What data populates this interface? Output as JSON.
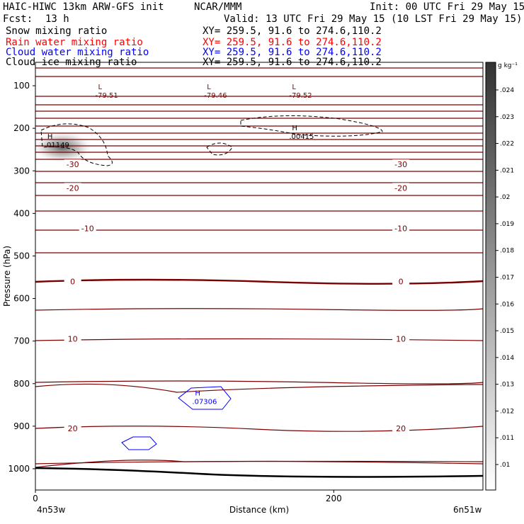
{
  "header": {
    "title_left": "HAIC-HIWC 13km ARW-GFS init",
    "title_mid": "NCAR/MMM",
    "init": "Init: 00 UTC Fri 29 May 15",
    "fcst_label": "Fcst:",
    "fcst_value": "13 h",
    "valid": "Valid: 13 UTC Fri 29 May 15 (10 LST Fri 29 May 15)",
    "fields": [
      {
        "name": "Snow mixing ratio",
        "xy": "XY= 259.5, 91.6 to 274.6,110.2",
        "color": "#000000"
      },
      {
        "name": "Rain water mixing ratio",
        "xy": "XY= 259.5, 91.6 to 274.6,110.2",
        "color": "#ff0000"
      },
      {
        "name": "Cloud water mixing ratio",
        "xy": "XY= 259.5, 91.6 to 274.6,110.2",
        "color": "#0000ff"
      },
      {
        "name": "Cloud ice mixing ratio",
        "xy": "XY= 259.5, 91.6 to 274.6,110.2",
        "color": "#000000"
      }
    ]
  },
  "chart_data": {
    "type": "contour",
    "ylabel": "Pressure (hPa)",
    "xlabel": "Distance (km)",
    "x_start_label": "4n53w",
    "x_end_label": "6n51w",
    "x_ticks": [
      0,
      200
    ],
    "xlim": [
      0,
      300
    ],
    "y_ticks": [
      100,
      200,
      300,
      400,
      500,
      600,
      700,
      800,
      900,
      1000
    ],
    "ylim": [
      45,
      1050
    ],
    "colorbar": {
      "unit": "g kg⁻¹",
      "ticks": [
        ".01",
        ".011",
        ".012",
        ".013",
        ".014",
        ".015",
        ".016",
        ".017",
        ".018",
        ".019",
        ".02",
        ".021",
        ".022",
        ".023",
        ".024"
      ]
    },
    "temperature_labels": [
      {
        "text": "-30",
        "x": 25,
        "p": 285
      },
      {
        "text": "-30",
        "x": 245,
        "p": 285
      },
      {
        "text": "-20",
        "x": 25,
        "p": 340
      },
      {
        "text": "-20",
        "x": 245,
        "p": 340
      },
      {
        "text": "-10",
        "x": 35,
        "p": 435
      },
      {
        "text": "-10",
        "x": 245,
        "p": 435
      },
      {
        "text": "0",
        "x": 25,
        "p": 560
      },
      {
        "text": "0",
        "x": 245,
        "p": 560
      },
      {
        "text": "10",
        "x": 25,
        "p": 695
      },
      {
        "text": "10",
        "x": 245,
        "p": 695
      },
      {
        "text": "20",
        "x": 25,
        "p": 905
      },
      {
        "text": "20",
        "x": 245,
        "p": 905
      }
    ],
    "extrema_labels": [
      {
        "kind": "L",
        "value": "-79.51",
        "x": 42,
        "p": 108,
        "color": "#8b0000"
      },
      {
        "kind": "L",
        "value": "-79.46",
        "x": 115,
        "p": 108,
        "color": "#8b0000"
      },
      {
        "kind": "L",
        "value": "-79.52",
        "x": 172,
        "p": 108,
        "color": "#8b0000"
      },
      {
        "kind": "H",
        "value": ".01149",
        "x": 8,
        "p": 225,
        "color": "#000000"
      },
      {
        "kind": "H",
        "value": ".00415",
        "x": 172,
        "p": 205,
        "color": "#000000"
      },
      {
        "kind": "H",
        "value": ".07306",
        "x": 107,
        "p": 828,
        "color": "#0000ff"
      }
    ]
  }
}
